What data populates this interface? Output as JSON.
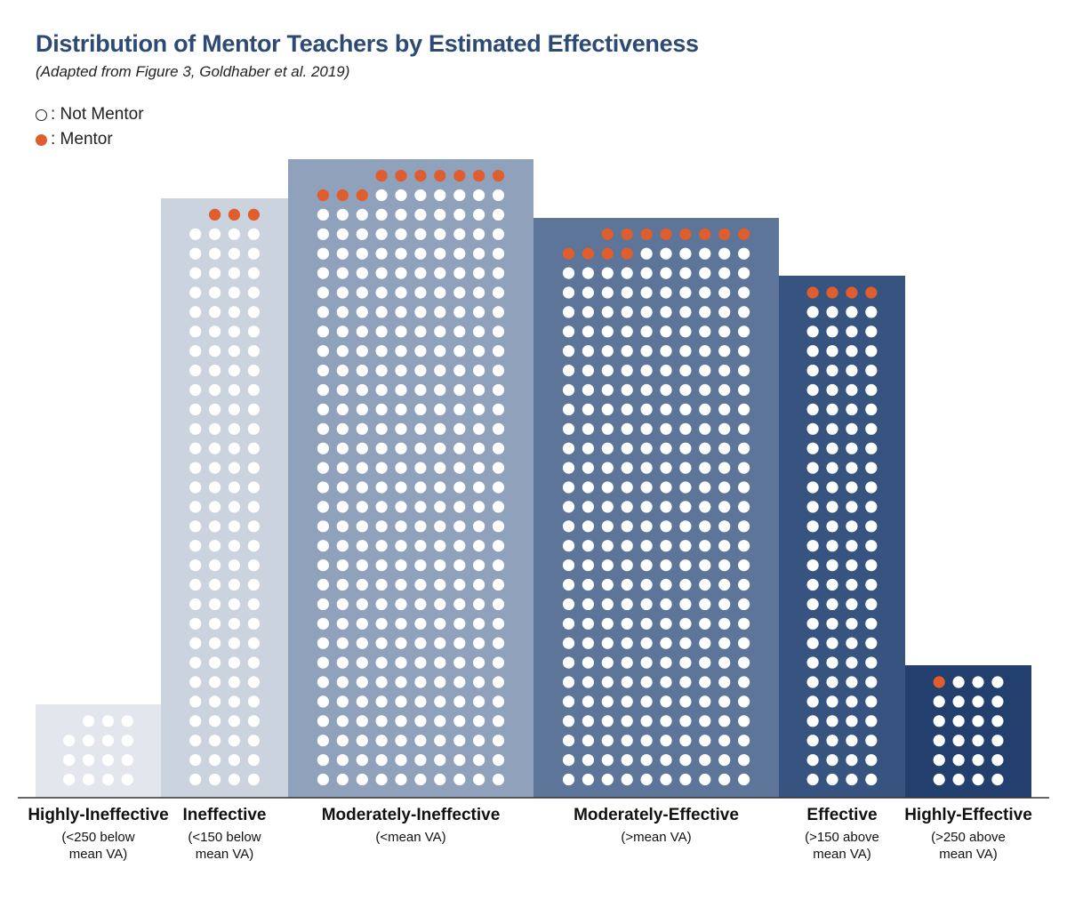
{
  "header": {
    "title": "Distribution of Mentor Teachers by Estimated Effectiveness",
    "subtitle": "(Adapted from Figure 3, Goldhaber et al. 2019)"
  },
  "legend": {
    "not_mentor": {
      "symbol": "○",
      "label": ": Not Mentor"
    },
    "mentor": {
      "symbol": "●",
      "label": ": Mentor"
    }
  },
  "colors": {
    "mentor": "#e05d2e",
    "not_mentor": "#ffffff",
    "baseline": "#333333"
  },
  "chart_data": {
    "type": "unit-bar",
    "unit": "one dot per teacher",
    "categories": [
      {
        "name": "Highly-Ineffective",
        "sublabel": "(<250 below mean VA)",
        "dot_columns": 4,
        "not_mentor": 15,
        "mentor": 0,
        "color": "#e3e7ed"
      },
      {
        "name": "Ineffective",
        "sublabel": "(<150 below mean VA)",
        "dot_columns": 4,
        "not_mentor": 116,
        "mentor": 3,
        "color": "#cbd3df"
      },
      {
        "name": "Moderately-Ineffective",
        "sublabel": "(<mean VA)",
        "dot_columns": 10,
        "not_mentor": 307,
        "mentor": 10,
        "color": "#8fa1bb"
      },
      {
        "name": "Moderately-Effective",
        "sublabel": "(>mean VA)",
        "dot_columns": 10,
        "not_mentor": 276,
        "mentor": 12,
        "color": "#5c7599"
      },
      {
        "name": "Effective",
        "sublabel": "(>150 above mean VA)",
        "dot_columns": 4,
        "not_mentor": 100,
        "mentor": 4,
        "color": "#36547f"
      },
      {
        "name": "Highly-Effective",
        "sublabel": "(>250 above mean VA)",
        "dot_columns": 4,
        "not_mentor": 23,
        "mentor": 1,
        "color": "#223f6e"
      }
    ]
  }
}
